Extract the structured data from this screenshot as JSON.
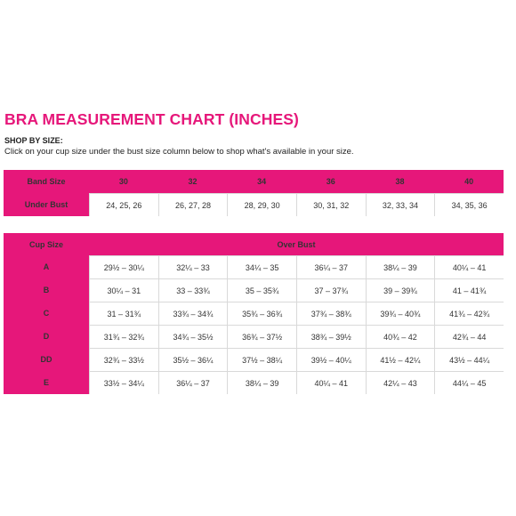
{
  "title": "BRA MEASUREMENT CHART (INCHES)",
  "shop": {
    "heading": "SHOP BY SIZE:",
    "instructions": "Click on your cup size under the bust size column below to shop what's available in your size."
  },
  "band_table": {
    "band_label": "Band Size",
    "under_label": "Under Bust",
    "band_sizes": [
      "30",
      "32",
      "34",
      "36",
      "38",
      "40"
    ],
    "under_bust": [
      "24, 25, 26",
      "26, 27, 28",
      "28, 29, 30",
      "30, 31, 32",
      "32, 33, 34",
      "34, 35, 36"
    ]
  },
  "over_table": {
    "cup_label": "Cup Size",
    "over_label": "Over Bust",
    "rows": [
      {
        "cup": "A",
        "values": [
          "29½ – 30¼",
          "32¼ – 33",
          "34¼ – 35",
          "36¼ – 37",
          "38¼ – 39",
          "40¼ – 41"
        ]
      },
      {
        "cup": "B",
        "values": [
          "30¼ – 31",
          "33 – 33¾",
          "35 – 35¾",
          "37 – 37¾",
          "39 – 39¾",
          "41 – 41¾"
        ]
      },
      {
        "cup": "C",
        "values": [
          "31 – 31¾",
          "33¾ – 34¾",
          "35¾ – 36¾",
          "37¾ – 38¾",
          "39¾ – 40¾",
          "41¾ – 42¾"
        ]
      },
      {
        "cup": "D",
        "values": [
          "31¾ – 32¾",
          "34¾ – 35½",
          "36¾ – 37½",
          "38¾ – 39½",
          "40¾ – 42",
          "42¾ – 44"
        ]
      },
      {
        "cup": "DD",
        "values": [
          "32¾ – 33½",
          "35½ – 36¼",
          "37½ – 38¼",
          "39½ – 40¼",
          "41½ – 42¼",
          "43½ – 44¼"
        ]
      },
      {
        "cup": "E",
        "values": [
          "33½ – 34¼",
          "36¼ – 37",
          "38¼ – 39",
          "40¼ – 41",
          "42¼ – 43",
          "44¼ – 45"
        ]
      }
    ]
  },
  "colors": {
    "accent": "#e6177a",
    "cell_bg": "#ffffff",
    "grid": "#d9d9d9"
  }
}
